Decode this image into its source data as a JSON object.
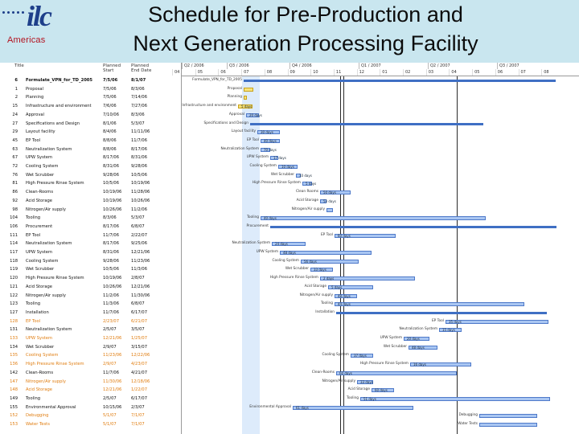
{
  "header": {
    "logo_text": "ilc",
    "logo_subtitle": "Americas",
    "title_line1": "Schedule for Pre-Production  and",
    "title_line2": "Next Generation Processing Facility",
    "background": "#c9e6ef"
  },
  "columns": {
    "id": "",
    "task": "Title",
    "start": "Planned Start",
    "end": "Planned End Date"
  },
  "timeline": {
    "quarters": [
      "Q2 / 2006",
      "Q3 / 2006",
      "Q4 / 2006",
      "Q1 / 2007",
      "Q2 / 2007",
      "Q3 / 2007"
    ],
    "months": [
      "04",
      "05",
      "06",
      "07",
      "08",
      "09",
      "10",
      "11",
      "12",
      "01",
      "02",
      "03",
      "04",
      "05",
      "06",
      "07",
      "08"
    ]
  },
  "rows": [
    {
      "id": "6",
      "task": "Formulate_VPN_for_TD_2005",
      "start": "7/5/06",
      "end": "8/1/07",
      "style": "bold"
    },
    {
      "id": "1",
      "task": "Proposal",
      "start": "7/5/06",
      "end": "8/3/06",
      "style": ""
    },
    {
      "id": "2",
      "task": "Planning",
      "start": "7/5/06",
      "end": "7/14/06",
      "style": ""
    },
    {
      "id": "15",
      "task": "Infrastructure and environment",
      "start": "7/6/06",
      "end": "7/27/06",
      "style": ""
    },
    {
      "id": "24",
      "task": "Approval",
      "start": "7/10/06",
      "end": "8/3/06",
      "style": ""
    },
    {
      "id": "27",
      "task": "Specifications and Design",
      "start": "8/1/06",
      "end": "5/3/07",
      "style": ""
    },
    {
      "id": "29",
      "task": "Layout facility",
      "start": "8/4/06",
      "end": "11/11/06",
      "style": ""
    },
    {
      "id": "45",
      "task": "EP Tool",
      "start": "8/8/06",
      "end": "11/7/06",
      "style": ""
    },
    {
      "id": "63",
      "task": "Neutralization System",
      "start": "8/8/06",
      "end": "8/17/06",
      "style": ""
    },
    {
      "id": "67",
      "task": "UPW System",
      "start": "8/17/06",
      "end": "8/31/06",
      "style": ""
    },
    {
      "id": "72",
      "task": "Cooling System",
      "start": "8/31/06",
      "end": "9/28/06",
      "style": ""
    },
    {
      "id": "76",
      "task": "Wet Scrubber",
      "start": "9/28/06",
      "end": "10/5/06",
      "style": ""
    },
    {
      "id": "81",
      "task": "High Pressure Rinse System",
      "start": "10/5/06",
      "end": "10/19/06",
      "style": ""
    },
    {
      "id": "86",
      "task": "Clean-Rooms",
      "start": "10/19/06",
      "end": "11/28/06",
      "style": ""
    },
    {
      "id": "92",
      "task": "Acid Storage",
      "start": "10/19/06",
      "end": "10/26/06",
      "style": ""
    },
    {
      "id": "98",
      "task": "Nitrogen/Air supply",
      "start": "10/26/06",
      "end": "11/2/06",
      "style": ""
    },
    {
      "id": "104",
      "task": "Tooling",
      "start": "8/3/06",
      "end": "5/3/07",
      "style": ""
    },
    {
      "id": "106",
      "task": "Procurement",
      "start": "8/17/06",
      "end": "6/8/07",
      "style": ""
    },
    {
      "id": "111",
      "task": "EP Tool",
      "start": "11/7/06",
      "end": "2/22/07",
      "style": ""
    },
    {
      "id": "114",
      "task": "Neutralization System",
      "start": "8/17/06",
      "end": "9/25/06",
      "style": ""
    },
    {
      "id": "117",
      "task": "UPW System",
      "start": "8/31/06",
      "end": "12/21/06",
      "style": ""
    },
    {
      "id": "118",
      "task": "Cooling System",
      "start": "9/28/06",
      "end": "11/23/06",
      "style": ""
    },
    {
      "id": "119",
      "task": "Wet Scrubber",
      "start": "10/5/06",
      "end": "11/3/06",
      "style": ""
    },
    {
      "id": "120",
      "task": "High Pressure Rinse System",
      "start": "10/19/06",
      "end": "2/8/07",
      "style": ""
    },
    {
      "id": "121",
      "task": "Acid Storage",
      "start": "10/26/06",
      "end": "12/21/06",
      "style": ""
    },
    {
      "id": "122",
      "task": "Nitrogen/Air supply",
      "start": "11/2/06",
      "end": "11/30/06",
      "style": ""
    },
    {
      "id": "123",
      "task": "Tooling",
      "start": "11/3/06",
      "end": "6/8/07",
      "style": ""
    },
    {
      "id": "127",
      "task": "Installation",
      "start": "11/7/06",
      "end": "6/17/07",
      "style": ""
    },
    {
      "id": "128",
      "task": "EP Tool",
      "start": "2/23/07",
      "end": "6/21/07",
      "style": "orange"
    },
    {
      "id": "131",
      "task": "Neutralization System",
      "start": "2/5/07",
      "end": "3/5/07",
      "style": ""
    },
    {
      "id": "133",
      "task": "UPW System",
      "start": "12/21/06",
      "end": "1/25/07",
      "style": "orange"
    },
    {
      "id": "134",
      "task": "Wet Scrubber",
      "start": "2/9/07",
      "end": "3/15/07",
      "style": ""
    },
    {
      "id": "135",
      "task": "Cooling System",
      "start": "11/23/06",
      "end": "12/22/06",
      "style": "orange"
    },
    {
      "id": "136",
      "task": "High Pressure Rinse System",
      "start": "2/9/07",
      "end": "4/23/07",
      "style": "orange"
    },
    {
      "id": "142",
      "task": "Clean-Rooms",
      "start": "11/7/06",
      "end": "4/21/07",
      "style": ""
    },
    {
      "id": "147",
      "task": "Nitrogen/Air supply",
      "start": "11/30/06",
      "end": "12/18/06",
      "style": "orange"
    },
    {
      "id": "148",
      "task": "Acid Storage",
      "start": "12/21/06",
      "end": "1/22/07",
      "style": "orange"
    },
    {
      "id": "149",
      "task": "Tooling",
      "start": "2/5/07",
      "end": "6/17/07",
      "style": ""
    },
    {
      "id": "155",
      "task": "Environmental Approval",
      "start": "10/15/06",
      "end": "2/3/07",
      "style": ""
    },
    {
      "id": "152",
      "task": "Debugging",
      "start": "5/1/07",
      "end": "7/1/07",
      "style": "orange"
    },
    {
      "id": "153",
      "task": "Water Tests",
      "start": "5/1/07",
      "end": "7/1/07",
      "style": "orange"
    }
  ],
  "chart_labels": [
    {
      "text": "Formulate_VPN_for_TD_2005"
    },
    {
      "text": "Proposal"
    },
    {
      "text": "Planning"
    },
    {
      "text": "Infrastructure and environment"
    },
    {
      "text": "Approval"
    },
    {
      "text": "Specifications and Design"
    },
    {
      "text": "Layout facility"
    },
    {
      "text": "EP Tool"
    },
    {
      "text": "Neutralization System"
    },
    {
      "text": "UPW System"
    },
    {
      "text": "Cooling System"
    },
    {
      "text": "Wet Scrubber"
    },
    {
      "text": "High Pressure Rinse System"
    },
    {
      "text": "Clean Rooms"
    },
    {
      "text": "Acid Storage"
    },
    {
      "text": "Nitrogen/Air supply"
    },
    {
      "text": "Tooling"
    },
    {
      "text": "Procurement"
    },
    {
      "text": "EP Tool"
    },
    {
      "text": "Neutralization System"
    },
    {
      "text": "UPW System"
    },
    {
      "text": "Cooling System"
    },
    {
      "text": "Wet Scrubber"
    },
    {
      "text": "High Pressure Rinse System"
    },
    {
      "text": "Acid Storage"
    },
    {
      "text": "Nitrogen/Air supply"
    },
    {
      "text": "Tooling"
    },
    {
      "text": "Installation"
    },
    {
      "text": "EP Tool"
    },
    {
      "text": "Neutralization System"
    },
    {
      "text": "UPW System"
    },
    {
      "text": "Wet Scrubber"
    },
    {
      "text": "Cooling System"
    },
    {
      "text": "High Pressure Rinse System"
    },
    {
      "text": "Clean-Rooms"
    },
    {
      "text": "Nitrogen/Air supply"
    },
    {
      "text": "Acid Storage"
    },
    {
      "text": "Tooling"
    },
    {
      "text": "Environmental Approval"
    },
    {
      "text": "Debugging"
    },
    {
      "text": "Water Tests"
    }
  ],
  "bar_texts": [
    "5 days",
    "20 days",
    "30 days",
    "40 days",
    "70 days",
    "17 days",
    "10 days",
    "10 days",
    "5 days",
    "50 days",
    "53 days",
    "40 days",
    "60 days",
    "24 days",
    "48 days",
    "56 days",
    "33 days",
    "2 days",
    "5 days",
    "48 days",
    "44 days",
    "35 days",
    "15 days",
    "20 days",
    "48 days",
    "37 days",
    "16 days",
    "60 days",
    "33 days",
    "60 days",
    "51 days",
    "61 days"
  ],
  "colors": {
    "bar": "#a9c6f2",
    "bar_border": "#4e79c9",
    "highlight": "#ddebfb",
    "orange_text": "#e07d10"
  }
}
